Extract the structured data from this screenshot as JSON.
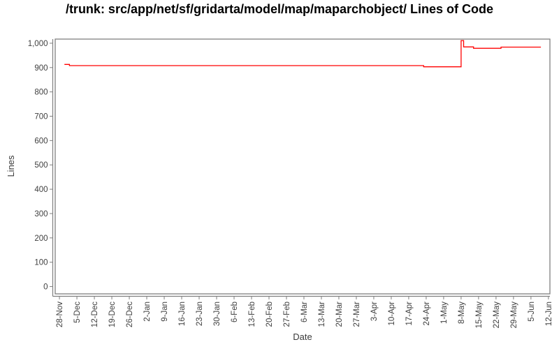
{
  "title": "/trunk: src/app/net/sf/gridarta/model/map/maparchobject/ Lines of Code",
  "chart_data": {
    "type": "line",
    "title": "/trunk: src/app/net/sf/gridarta/model/map/maparchobject/ Lines of Code",
    "xlabel": "Date",
    "ylabel": "Lines",
    "grid": false,
    "legend": "none",
    "x_tick_labels": [
      "28-Nov",
      "5-Dec",
      "12-Dec",
      "19-Dec",
      "26-Dec",
      "2-Jan",
      "9-Jan",
      "16-Jan",
      "23-Jan",
      "30-Jan",
      "6-Feb",
      "13-Feb",
      "20-Feb",
      "27-Feb",
      "6-Mar",
      "13-Mar",
      "20-Mar",
      "27-Mar",
      "3-Apr",
      "10-Apr",
      "17-Apr",
      "24-Apr",
      "1-May",
      "8-May",
      "15-May",
      "22-May",
      "29-May",
      "5-Jun",
      "12-Jun"
    ],
    "x_tick_interval_days": 7,
    "y_ticks": [
      {
        "value": 0,
        "label": "0"
      },
      {
        "value": 100,
        "label": "100"
      },
      {
        "value": 200,
        "label": "200"
      },
      {
        "value": 300,
        "label": "300"
      },
      {
        "value": 400,
        "label": "400"
      },
      {
        "value": 500,
        "label": "500"
      },
      {
        "value": 600,
        "label": "600"
      },
      {
        "value": 700,
        "label": "700"
      },
      {
        "value": 800,
        "label": "800"
      },
      {
        "value": 900,
        "label": "900"
      },
      {
        "value": 1000,
        "label": "1,000"
      }
    ],
    "x_range_days": [
      -1.7,
      196.6
    ],
    "y_range": [
      -30,
      1017
    ],
    "series": [
      {
        "name": "Lines of Code",
        "color": "#ff0000",
        "points_day_value": [
          [
            2,
            913
          ],
          [
            4,
            913
          ],
          [
            4,
            908
          ],
          [
            146,
            908
          ],
          [
            146,
            903
          ],
          [
            161,
            903
          ],
          [
            161,
            1011
          ],
          [
            162,
            1011
          ],
          [
            162,
            985
          ],
          [
            166,
            985
          ],
          [
            166,
            979
          ],
          [
            177,
            979
          ],
          [
            177,
            984
          ],
          [
            193,
            984
          ]
        ]
      }
    ],
    "colors": {
      "line": "#ff0000",
      "plot_border": "#808080",
      "axis_line": "#7f7f7f",
      "tick_label": "#3f3f3f",
      "axis_title": "#3a3a3a",
      "background": "#ffffff"
    }
  }
}
